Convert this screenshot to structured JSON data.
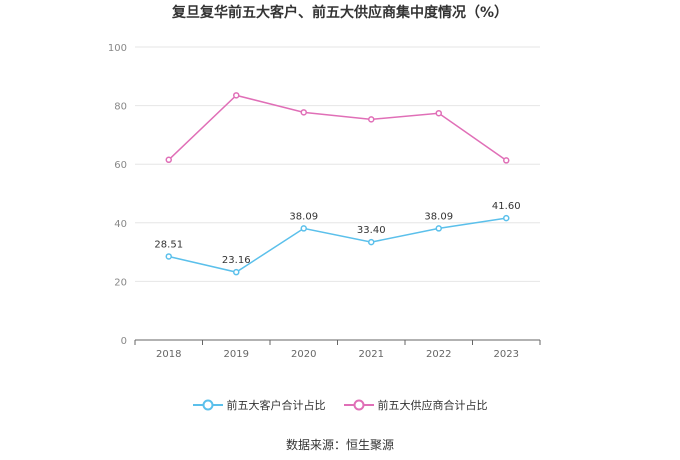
{
  "title": "复旦复华前五大客户、前五大供应商集中度情况（%）",
  "source": "数据来源：恒生聚源",
  "colors": {
    "customers": "#5bc0eb",
    "suppliers": "#e06fb7",
    "grid": "#e6e6e6",
    "axis": "#666666"
  },
  "chart_data": {
    "type": "line",
    "title": "复旦复华前五大客户、前五大供应商集中度情况（%）",
    "categories": [
      "2018",
      "2019",
      "2020",
      "2021",
      "2022",
      "2023"
    ],
    "ylim": [
      0,
      100
    ],
    "yticks": [
      "0",
      "20",
      "40",
      "60",
      "80",
      "100"
    ],
    "grid": true,
    "legend_position": "bottom",
    "series": [
      {
        "name": "前五大客户合计占比",
        "values": [
          28.51,
          23.16,
          38.09,
          33.4,
          38.09,
          41.6
        ],
        "labels": [
          "28.51",
          "23.16",
          "38.09",
          "33.40",
          "38.09",
          "41.60"
        ],
        "color": "#5bc0eb"
      },
      {
        "name": "前五大供应商合计占比",
        "values": [
          61.5,
          83.5,
          77.7,
          75.3,
          77.4,
          61.3
        ],
        "labels": null,
        "color": "#e06fb7"
      }
    ]
  }
}
